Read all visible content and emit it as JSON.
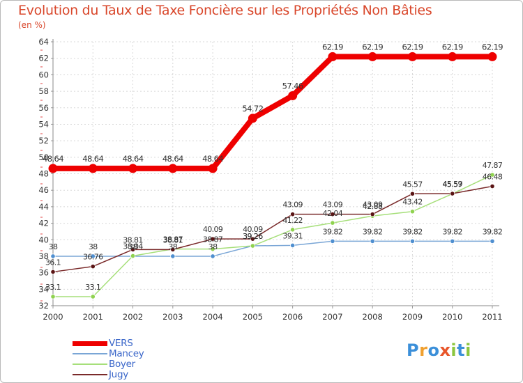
{
  "title": "Evolution du Taux de Taxe Foncière sur les Propriétés Non Bâties",
  "unit_label": "(en %)",
  "chart_data": {
    "type": "line",
    "title": "Evolution du Taux de Taxe Foncière sur les Propriétés Non Bâties",
    "ylabel": "(en %)",
    "xlabel": "",
    "x": [
      "2000",
      "2001",
      "2002",
      "2003",
      "2004",
      "2005",
      "2006",
      "2007",
      "2008",
      "2009",
      "2010",
      "2011"
    ],
    "ylim": [
      32,
      64
    ],
    "yticks": [
      32,
      34,
      36,
      38,
      40,
      42,
      44,
      46,
      48,
      50,
      52,
      54,
      56,
      58,
      60,
      62,
      64
    ],
    "grid": true,
    "legend_position": "bottom-left",
    "series": [
      {
        "name": "VERS",
        "color": "#ee0000",
        "values": [
          48.64,
          48.64,
          48.64,
          48.64,
          48.64,
          54.72,
          57.46,
          62.19,
          62.19,
          62.19,
          62.19,
          62.19
        ],
        "labels": [
          "48.64",
          "48.64",
          "48.64",
          "48.64",
          "48.64",
          "54.72",
          "57.46",
          "62.19",
          "62.19",
          "62.19",
          "62.19",
          "62.19"
        ]
      },
      {
        "name": "Mancey",
        "color": "#7aa6d6",
        "values": [
          38,
          38,
          38,
          38,
          38,
          39.26,
          39.31,
          39.82,
          39.82,
          39.82,
          39.82,
          39.82
        ],
        "labels": [
          "38",
          "38",
          "38",
          "38",
          "38",
          "39.26",
          "39.31",
          "39.82",
          "39.82",
          "39.82",
          "39.82",
          "39.82"
        ]
      },
      {
        "name": "Boyer",
        "color": "#a6df7a",
        "values": [
          33.1,
          33.1,
          38.04,
          38.87,
          38.87,
          39.26,
          41.22,
          42.04,
          42.88,
          43.42,
          45.57,
          47.87
        ],
        "labels": [
          "33.1",
          "33.1",
          "38.04",
          "38.87",
          "38.87",
          "39.26",
          "41.22",
          "42.04",
          "42.88",
          "43.42",
          "45.57",
          "47.87"
        ]
      },
      {
        "name": "Jugy",
        "color": "#7a2a2a",
        "values": [
          36.1,
          36.76,
          38.81,
          38.81,
          40.09,
          40.09,
          43.09,
          43.09,
          43.09,
          45.57,
          45.59,
          46.48
        ],
        "labels": [
          "36.1",
          "36.76",
          "38.81",
          "38.81",
          "40.09",
          "40.09",
          "43.09",
          "43.09",
          "43.09",
          "45.57",
          "45.59",
          "46.48"
        ]
      }
    ]
  },
  "logo": {
    "letters": [
      "P",
      "r",
      "o",
      "x",
      "i",
      "t",
      "i"
    ],
    "colors": [
      "#3b8fd9",
      "#f0a030",
      "#3b8fd9",
      "#e8552a",
      "#8cc63f",
      "#3b8fd9",
      "#8cc63f"
    ]
  }
}
